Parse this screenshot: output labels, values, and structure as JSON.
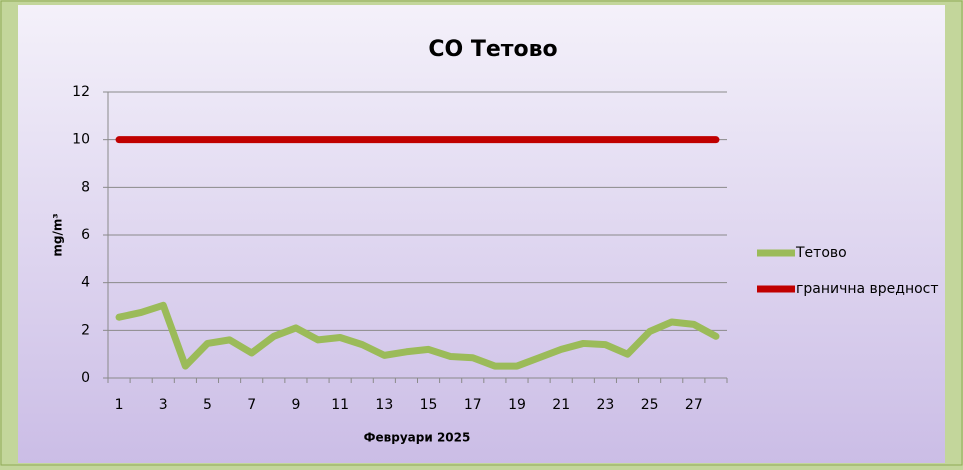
{
  "chart_data": {
    "type": "line",
    "title": "CO Тетово",
    "x_label": "Февруари 2025",
    "y_label": "mg/m³",
    "categories": [
      1,
      null,
      3,
      null,
      5,
      null,
      7,
      null,
      9,
      null,
      11,
      null,
      13,
      null,
      15,
      null,
      17,
      null,
      19,
      null,
      21,
      null,
      23,
      null,
      25,
      null,
      27,
      null
    ],
    "series": [
      {
        "name": "Тетово",
        "color": "#9bbb59",
        "values": [
          2.55,
          2.75,
          3.05,
          0.5,
          1.45,
          1.6,
          1.05,
          1.75,
          2.1,
          1.6,
          1.7,
          1.4,
          0.95,
          1.1,
          1.2,
          0.9,
          0.85,
          0.5,
          0.5,
          0.85,
          1.2,
          1.45,
          1.4,
          1.0,
          1.95,
          2.35,
          2.25,
          1.75
        ]
      },
      {
        "name": "гранична вредност",
        "color": "#c00000",
        "values": [
          10,
          10,
          10,
          10,
          10,
          10,
          10,
          10,
          10,
          10,
          10,
          10,
          10,
          10,
          10,
          10,
          10,
          10,
          10,
          10,
          10,
          10,
          10,
          10,
          10,
          10,
          10,
          10
        ]
      }
    ],
    "ylim": [
      0,
      12
    ],
    "yticks": [
      0,
      2,
      4,
      6,
      8,
      10,
      12
    ],
    "grid": true,
    "legend": "right"
  }
}
